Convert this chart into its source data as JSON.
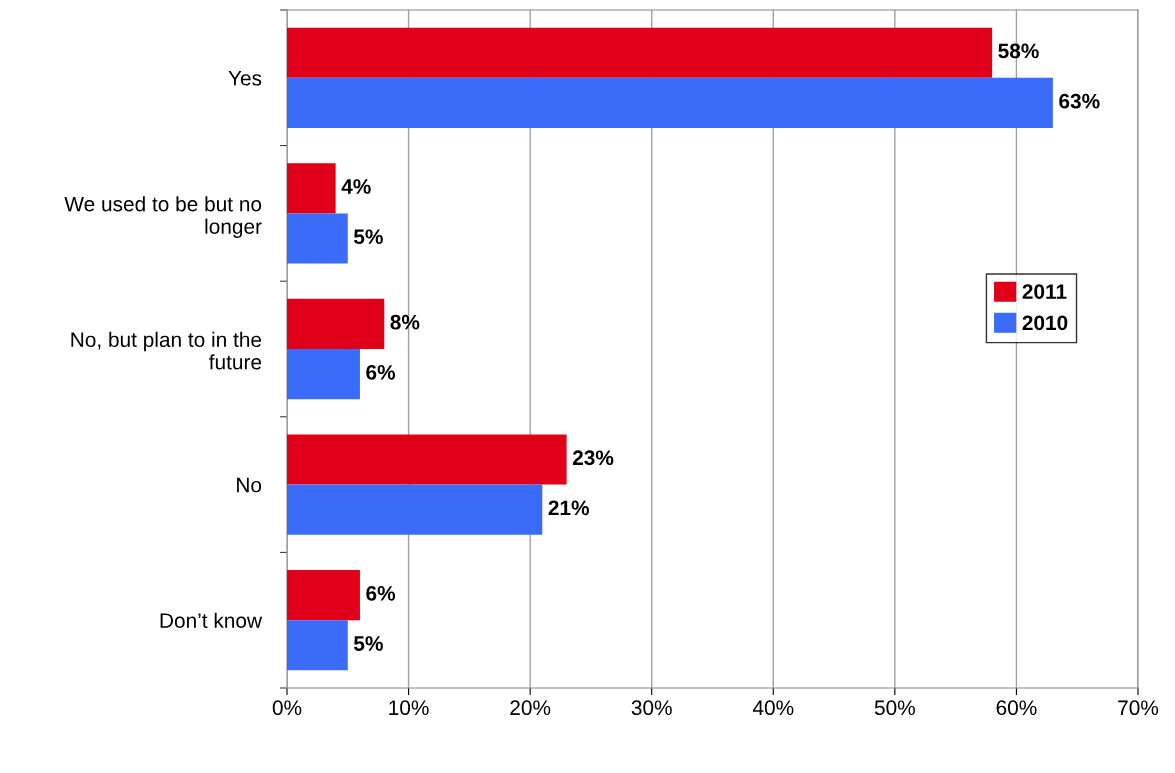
{
  "chart_data": {
    "type": "bar",
    "orientation": "horizontal",
    "categories": [
      "Yes",
      "We used to be but no longer",
      "No, but plan to in the future",
      "No",
      "Don’t know"
    ],
    "series": [
      {
        "name": "2011",
        "color": "#e00019",
        "values": [
          58,
          4,
          8,
          23,
          6
        ],
        "value_labels": [
          "58%",
          "4%",
          "8%",
          "23%",
          "6%"
        ]
      },
      {
        "name": "2010",
        "color": "#3a6cf7",
        "values": [
          63,
          5,
          6,
          21,
          5
        ],
        "value_labels": [
          "63%",
          "5%",
          "6%",
          "21%",
          "5%"
        ]
      }
    ],
    "xlim": [
      0,
      70
    ],
    "xticks": [
      {
        "value": 0,
        "label": "0%"
      },
      {
        "value": 10,
        "label": "10%"
      },
      {
        "value": 20,
        "label": "20%"
      },
      {
        "value": 30,
        "label": "30%"
      },
      {
        "value": 40,
        "label": "40%"
      },
      {
        "value": 50,
        "label": "50%"
      },
      {
        "value": 60,
        "label": "60%"
      },
      {
        "value": 70,
        "label": "70%"
      }
    ],
    "grid": "x",
    "legend": "right"
  }
}
